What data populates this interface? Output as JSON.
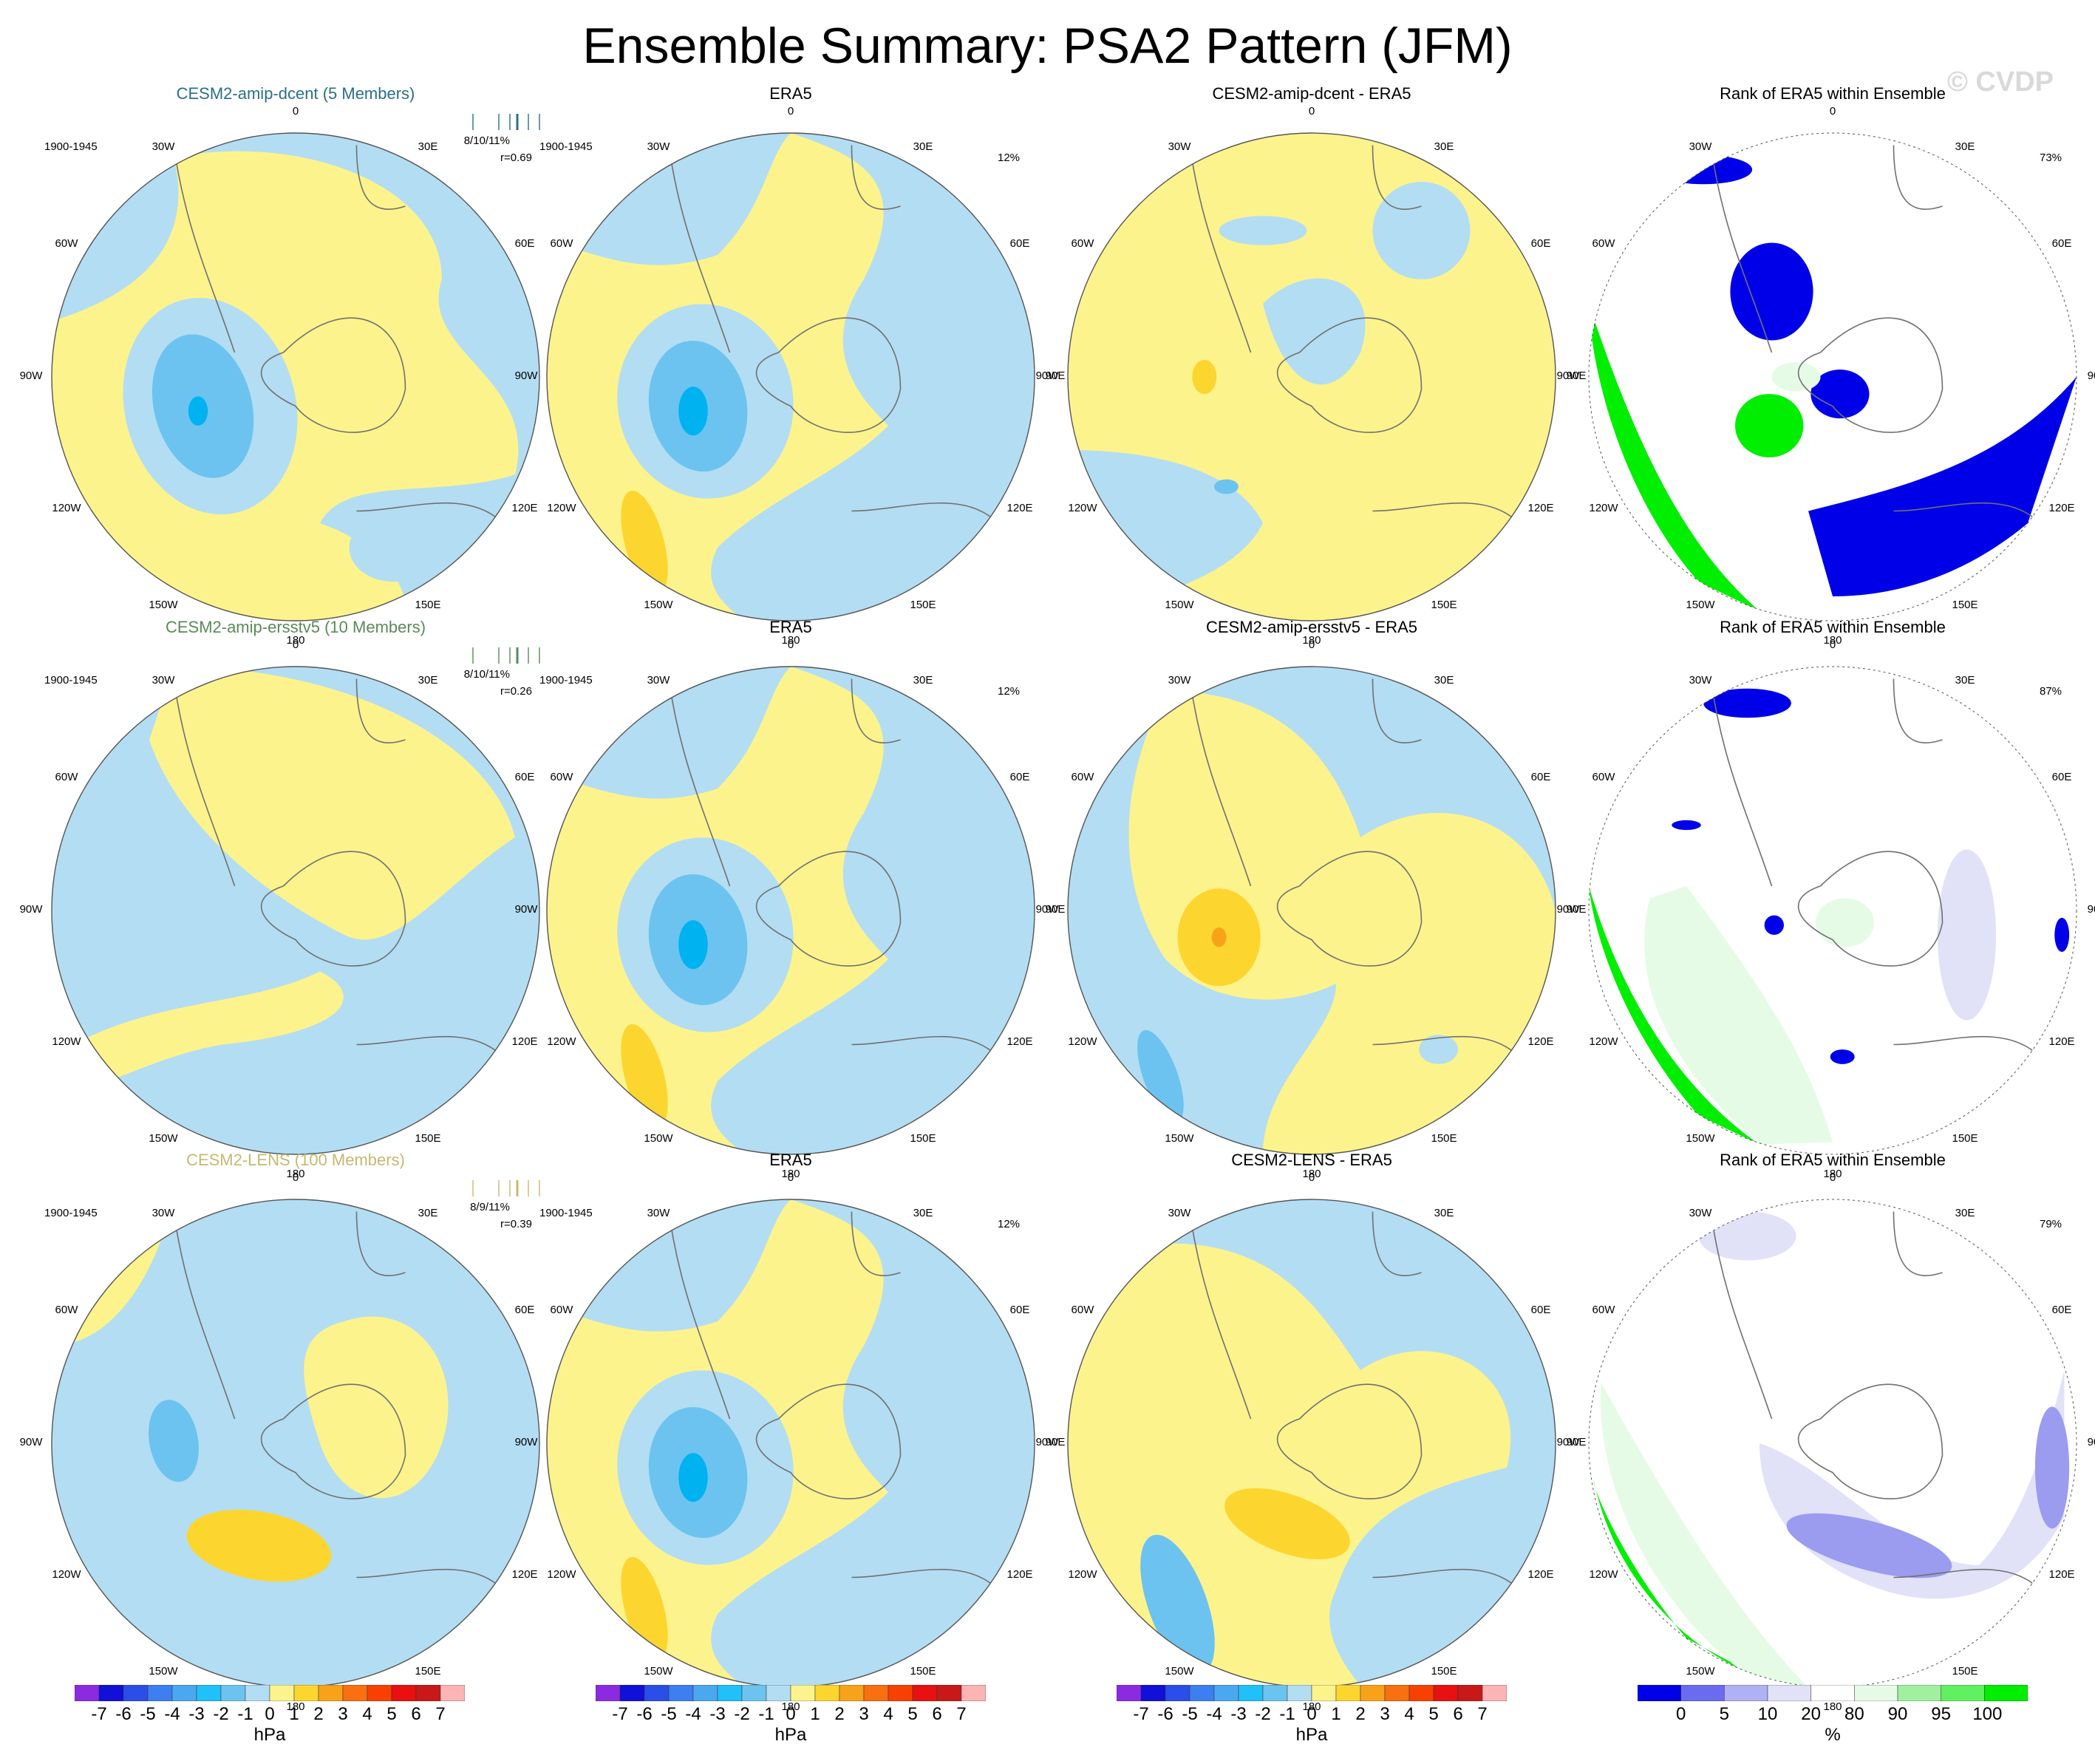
{
  "title": "Ensemble Summary: PSA2 Pattern (JFM)",
  "watermark": "© CVDP",
  "colors": {
    "blue_light": "#b3ddf2",
    "yellow_light": "#fdf38d",
    "blue_mid": "#6cc3f0",
    "blue_deep": "#00b2f0",
    "orange_light": "#fdd52f",
    "orange_mid": "#f8a21a",
    "rank_blue": "#0000e8",
    "rank_lavender": "#9b9bf0",
    "rank_pale_lavender": "#e1e1f8",
    "rank_green": "#00ee00",
    "rank_pale_green": "#e6fbe6",
    "coastline": "#707070"
  },
  "longitude_labels": [
    "0",
    "30E",
    "60E",
    "90E",
    "120E",
    "150E",
    "180",
    "150W",
    "120W",
    "90W",
    "60W",
    "30W"
  ],
  "rows": [
    {
      "model": {
        "title": "CESM2-amip-dcent (5 Members)",
        "title_color": "#2a6f8a",
        "period": "1900-1945",
        "stat": "8/10/11%",
        "r": "r=0.69"
      },
      "obs": {
        "title": "ERA5",
        "period": "1900-1945",
        "pct": "12%"
      },
      "diff": {
        "title": "CESM2-amip-dcent - ERA5"
      },
      "rank": {
        "title": "Rank of ERA5 within Ensemble",
        "pct": "73%"
      }
    },
    {
      "model": {
        "title": "CESM2-amip-ersstv5 (10 Members)",
        "title_color": "#5a8a5a",
        "period": "1900-1945",
        "stat": "8/10/11%",
        "r": "r=0.26"
      },
      "obs": {
        "title": "ERA5",
        "period": "1900-1945",
        "pct": "12%"
      },
      "diff": {
        "title": "CESM2-amip-ersstv5 - ERA5"
      },
      "rank": {
        "title": "Rank of ERA5 within Ensemble",
        "pct": "87%"
      }
    },
    {
      "model": {
        "title": "CESM2-LENS (100 Members)",
        "title_color": "#c8b870",
        "period": "1900-1945",
        "stat": "8/9/11%",
        "r": "r=0.39"
      },
      "obs": {
        "title": "ERA5",
        "period": "1900-1945",
        "pct": "12%"
      },
      "diff": {
        "title": "CESM2-LENS - ERA5"
      },
      "rank": {
        "title": "Rank of ERA5 within Ensemble",
        "pct": "79%"
      }
    }
  ],
  "chart_data": [
    {
      "type": "heatmap",
      "name": "pressure-anomaly-colorbar",
      "units": "hPa",
      "levels": [
        -7,
        -6,
        -5,
        -4,
        -3,
        -2,
        -1,
        0,
        1,
        2,
        3,
        4,
        5,
        6,
        7
      ],
      "level_labels": [
        "-7",
        "-6",
        "-5",
        "-4",
        "-3",
        "-2",
        "-1",
        "0",
        "1",
        "2",
        "3",
        "4",
        "5",
        "6",
        "7"
      ],
      "colors": [
        "#8a2be2",
        "#1010d8",
        "#2a4ee8",
        "#3d7ef0",
        "#4aa8f0",
        "#20c0f8",
        "#6cc3f0",
        "#b3ddf2",
        "#fdf38d",
        "#fdd52f",
        "#f8a21a",
        "#f87010",
        "#f84000",
        "#e81010",
        "#c81818",
        "#fcb4b4"
      ]
    },
    {
      "type": "heatmap",
      "name": "rank-colorbar",
      "units": "%",
      "levels": [
        0,
        5,
        10,
        20,
        80,
        90,
        95,
        100
      ],
      "level_labels": [
        "0",
        "5",
        "10",
        "20",
        "80",
        "90",
        "95",
        "100"
      ],
      "colors": [
        "#0000e8",
        "#6b6bf0",
        "#b0b0f4",
        "#e1e1f8",
        "#ffffff",
        "#e6fbe6",
        "#a0f0a0",
        "#60f060",
        "#00ee00"
      ]
    }
  ]
}
